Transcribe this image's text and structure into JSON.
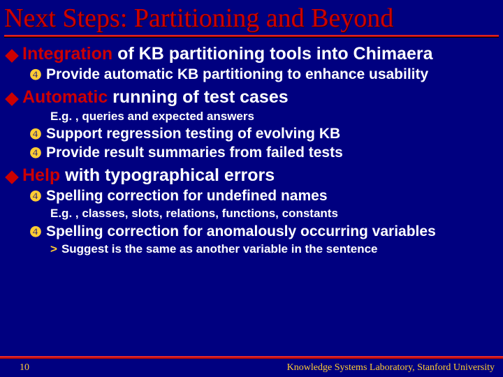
{
  "colors": {
    "background": "#000080",
    "title_color": "#cc0000",
    "accent_red": "#cc0000",
    "accent_yellow": "#ffcc33",
    "body_text": "#ffffff",
    "rule_gradient_top": "#ff3333",
    "rule_gradient_bottom": "#990000"
  },
  "typography": {
    "title_family": "Times New Roman",
    "title_size_pt": 28,
    "body_family": "Arial",
    "l1_size_pt": 19,
    "l2_size_pt": 16,
    "l3_size_pt": 13,
    "footer_size_pt": 11
  },
  "title": "Next Steps: Partitioning and Beyond",
  "bullets": {
    "b1": {
      "lead": "Integration",
      "rest": " of KB partitioning tools into Chimaera"
    },
    "b1_1": "Provide automatic KB partitioning to enhance usability",
    "b2": {
      "lead": "Automatic",
      "rest": " running of test cases"
    },
    "b2_eg": "E.g. , queries and expected answers",
    "b2_1": "Support regression testing of evolving KB",
    "b2_2": "Provide result summaries from failed tests",
    "b3": {
      "lead": "Help",
      "rest": " with typographical errors"
    },
    "b3_1": "Spelling correction for undefined names",
    "b3_1_eg": "E.g. , classes, slots, relations, functions, constants",
    "b3_2": "Spelling correction for anomalously occurring variables",
    "b3_2_s": "Suggest is the same as another variable in the sentence"
  },
  "footer": {
    "page": "10",
    "org": "Knowledge Systems Laboratory, Stanford University"
  }
}
